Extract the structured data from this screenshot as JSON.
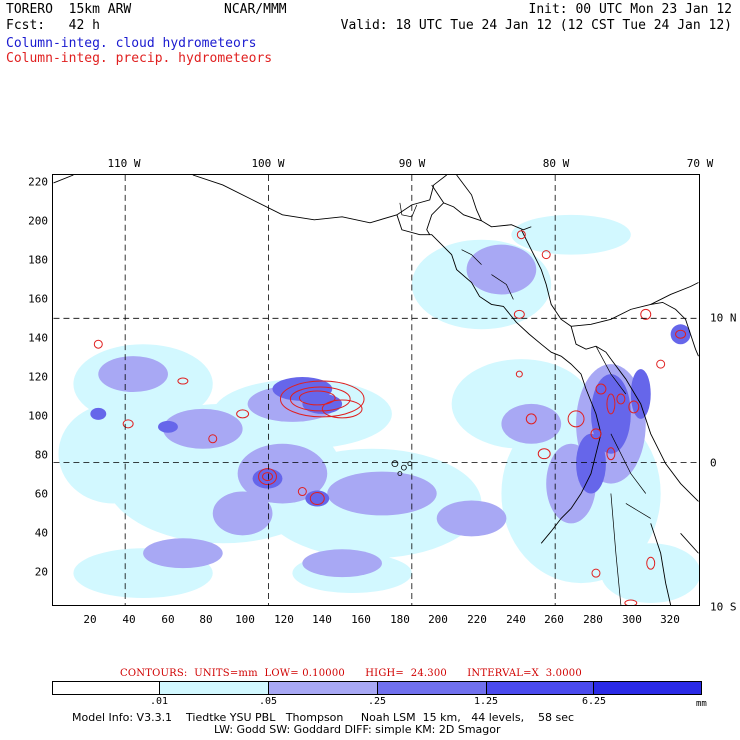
{
  "header": {
    "model": "TORERO  15km ARW",
    "org": "NCAR/MMM",
    "forecast": "Fcst:   42 h",
    "init": "Init: 00 UTC Mon 23 Jan 12",
    "valid": "Valid: 18 UTC Tue 24 Jan 12 (12 CST Tue 24 Jan 12)",
    "field_cloud": "Column-integ. cloud hydrometeors",
    "field_precip": "Column-integ. precip. hydrometeors"
  },
  "colors": {
    "cloud_field": "#1a1ad0",
    "precip_field": "#e02020",
    "contour_text": "#d00000"
  },
  "map": {
    "lon_labels": [
      {
        "text": "110 W",
        "lon": -110
      },
      {
        "text": "100 W",
        "lon": -100
      },
      {
        "text": "90 W",
        "lon": -90
      },
      {
        "text": "80 W",
        "lon": -80
      },
      {
        "text": "70 W",
        "lon": -70
      }
    ],
    "lat_labels": [
      {
        "text": "10 N",
        "lat": 10
      },
      {
        "text": "0",
        "lat": 0
      },
      {
        "text": "10 S",
        "lat": -10
      }
    ],
    "x_ticks": [
      "20",
      "40",
      "60",
      "80",
      "100",
      "120",
      "140",
      "160",
      "180",
      "200",
      "220",
      "240",
      "260",
      "280",
      "300",
      "320"
    ],
    "y_ticks": [
      "20",
      "40",
      "60",
      "80",
      "100",
      "120",
      "140",
      "160",
      "180",
      "200",
      "220"
    ],
    "grid_x_range": [
      0,
      335
    ],
    "grid_y_range": [
      0,
      225
    ]
  },
  "contours": {
    "line": "CONTOURS:  UNITS=mm  LOW= 0.10000      HIGH=  24.300      INTERVAL=X  3.0000"
  },
  "colorbar": {
    "unit": "mm",
    "levels": [
      ".01",
      ".05",
      ".25",
      "1.25",
      "6.25"
    ],
    "colors": [
      "#ffffff",
      "#d2f8ff",
      "#a8a8f4",
      "#7070ee",
      "#4a4aee",
      "#2a2ae6"
    ]
  },
  "footer": {
    "line1": "Model Info: V3.3.1    Tiedtke YSU PBL   Thompson     Noah LSM  15 km,   44 levels,    58 sec",
    "line2": "LW: Godd SW: Goddard DIFF: simple KM: 2D Smagor"
  }
}
